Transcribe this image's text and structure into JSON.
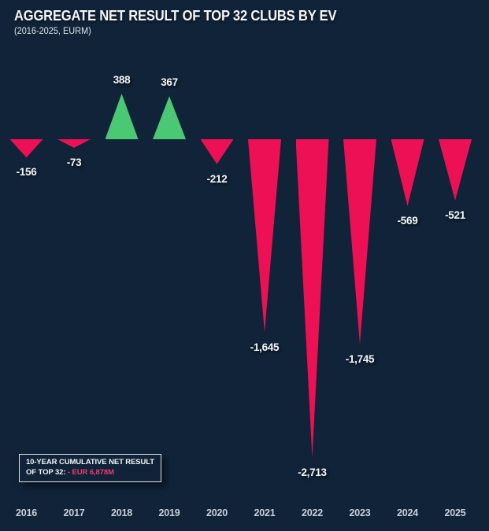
{
  "chart": {
    "title": "AGGREGATE NET RESULT OF TOP 32 CLUBS BY EV",
    "subtitle": "(2016-2025, EURM)"
  },
  "annotation": {
    "line1": "10-YEAR CUMULATIVE NET RESULT",
    "line2_prefix": "OF TOP 32: ",
    "line2_value": "- EUR 6,878M"
  },
  "colors": {
    "background": "#102338",
    "positive": "#4bc873",
    "negative": "#ee1054",
    "value_label": "#f4f6f8",
    "year_label": "#c8d0da",
    "annotation_value": "#ee3b72",
    "annotation_border": "#dfe5ec"
  },
  "chart_data": {
    "type": "bar",
    "title": "AGGREGATE NET RESULT OF TOP 32 CLUBS BY EV",
    "subtitle": "(2016-2025, EURM)",
    "xlabel": "",
    "ylabel": "",
    "categories": [
      "2016",
      "2017",
      "2018",
      "2019",
      "2020",
      "2021",
      "2022",
      "2023",
      "2024",
      "2025"
    ],
    "values": [
      -156,
      -73,
      388,
      367,
      -212,
      -1645,
      -2713,
      -1745,
      -569,
      -521
    ],
    "labels": [
      "-156",
      "-73",
      "388",
      "367",
      "-212",
      "-1,645",
      "-2,713",
      "-1,745",
      "-569",
      "-521"
    ],
    "baseline": 0,
    "ylim": [
      -2800,
      450
    ],
    "grid": false,
    "legend": false,
    "positive_color": "#4bc873",
    "negative_color": "#ee1054",
    "marker_style": "triangle",
    "annotation": "10-YEAR CUMULATIVE NET RESULT OF TOP 32: - EUR 6,878M"
  }
}
